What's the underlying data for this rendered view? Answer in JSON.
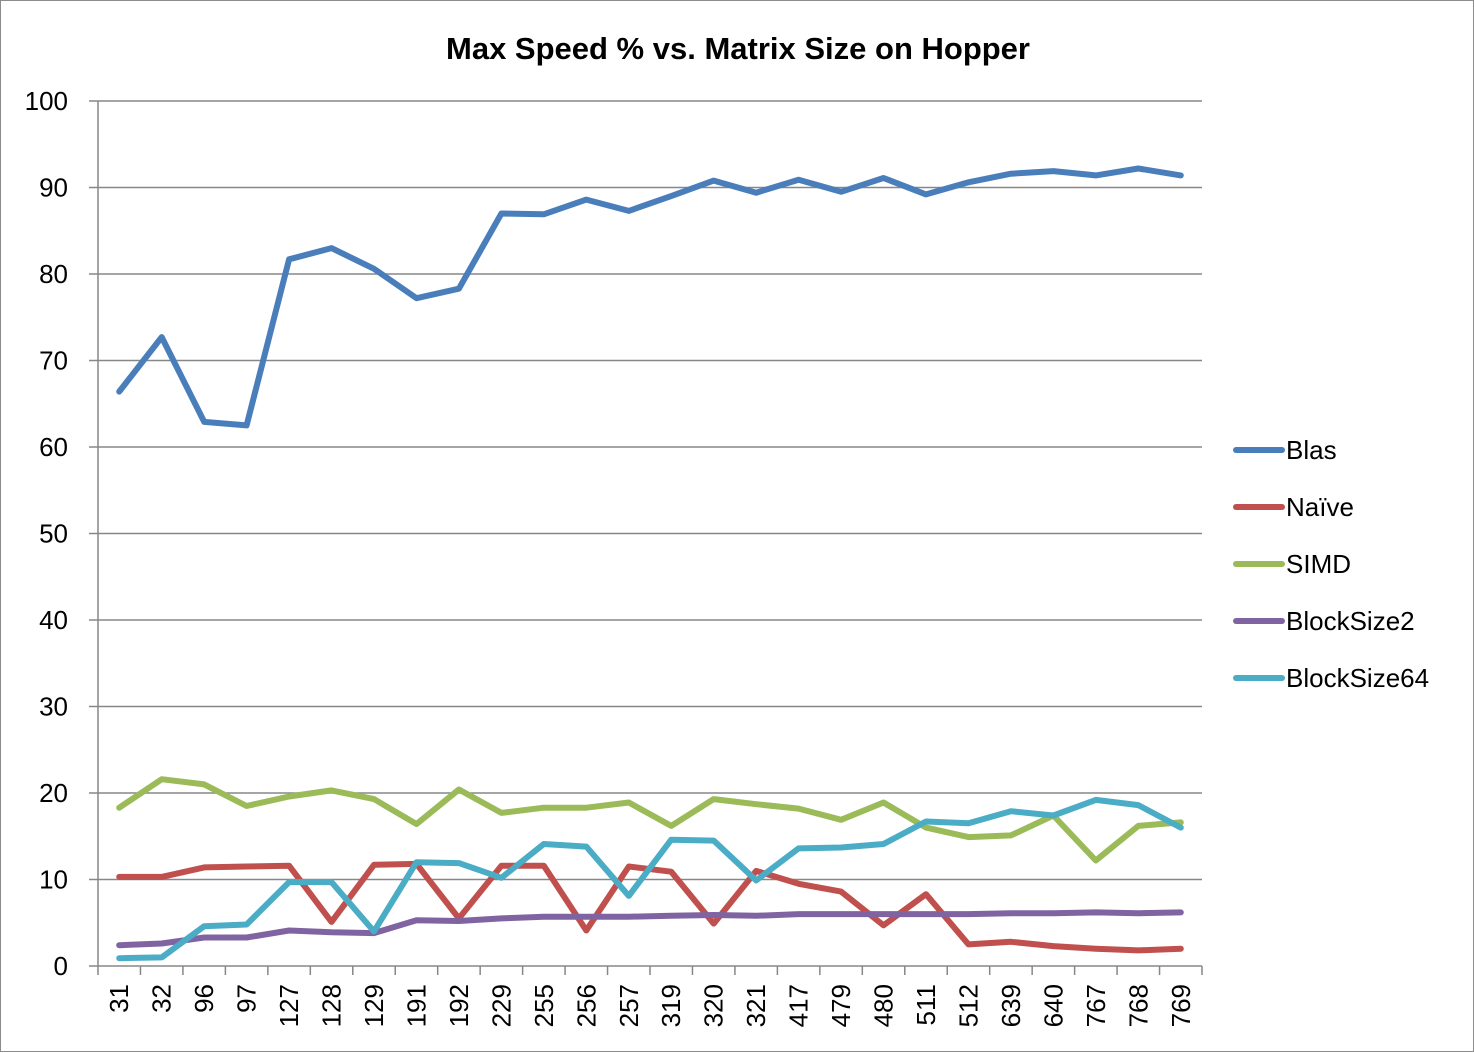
{
  "chart_data": {
    "type": "line",
    "title": "Max Speed % vs. Matrix Size on Hopper",
    "xlabel": "",
    "ylabel": "",
    "ylim": [
      0,
      100
    ],
    "yticks": [
      0,
      10,
      20,
      30,
      40,
      50,
      60,
      70,
      80,
      90,
      100
    ],
    "grid": "horizontal",
    "legend_position": "right",
    "categories": [
      "31",
      "32",
      "96",
      "97",
      "127",
      "128",
      "129",
      "191",
      "192",
      "229",
      "255",
      "256",
      "257",
      "319",
      "320",
      "321",
      "417",
      "479",
      "480",
      "511",
      "512",
      "639",
      "640",
      "767",
      "768",
      "769"
    ],
    "series": [
      {
        "name": "Blas",
        "color": "#4a7ebb",
        "values": [
          66.4,
          72.7,
          62.9,
          62.5,
          81.7,
          83.0,
          80.6,
          77.2,
          78.3,
          87.0,
          86.9,
          88.6,
          87.3,
          89.0,
          90.8,
          89.4,
          90.9,
          89.5,
          91.1,
          89.2,
          90.6,
          91.6,
          91.9,
          91.4,
          92.2,
          91.4
        ]
      },
      {
        "name": "Naïve",
        "color": "#c0504d",
        "values": [
          10.3,
          10.3,
          11.4,
          11.5,
          11.6,
          5.1,
          11.7,
          11.8,
          5.5,
          11.6,
          11.6,
          4.1,
          11.5,
          10.9,
          4.9,
          11.0,
          9.5,
          8.6,
          4.7,
          8.3,
          2.5,
          2.8,
          2.3,
          2.0,
          1.8,
          2.0
        ]
      },
      {
        "name": "SIMD",
        "color": "#9bbb59",
        "values": [
          18.3,
          21.6,
          21.0,
          18.5,
          19.6,
          20.3,
          19.3,
          16.4,
          20.4,
          17.7,
          18.3,
          18.3,
          18.9,
          16.2,
          19.3,
          18.7,
          18.2,
          16.9,
          18.9,
          16.0,
          14.9,
          15.1,
          17.4,
          12.2,
          16.2,
          16.6
        ]
      },
      {
        "name": "BlockSize2",
        "color": "#8064a2",
        "values": [
          2.4,
          2.6,
          3.3,
          3.3,
          4.1,
          3.9,
          3.8,
          5.3,
          5.2,
          5.5,
          5.7,
          5.7,
          5.7,
          5.8,
          5.9,
          5.8,
          6.0,
          6.0,
          6.0,
          6.0,
          6.0,
          6.1,
          6.1,
          6.2,
          6.1,
          6.2
        ]
      },
      {
        "name": "BlockSize64",
        "color": "#4bacc6",
        "values": [
          0.9,
          1.0,
          4.6,
          4.8,
          9.7,
          9.7,
          4.0,
          12.0,
          11.9,
          10.2,
          14.1,
          13.8,
          8.1,
          14.6,
          14.5,
          9.9,
          13.6,
          13.7,
          14.1,
          16.7,
          16.5,
          17.9,
          17.4,
          19.2,
          18.6,
          16.0
        ]
      }
    ]
  }
}
